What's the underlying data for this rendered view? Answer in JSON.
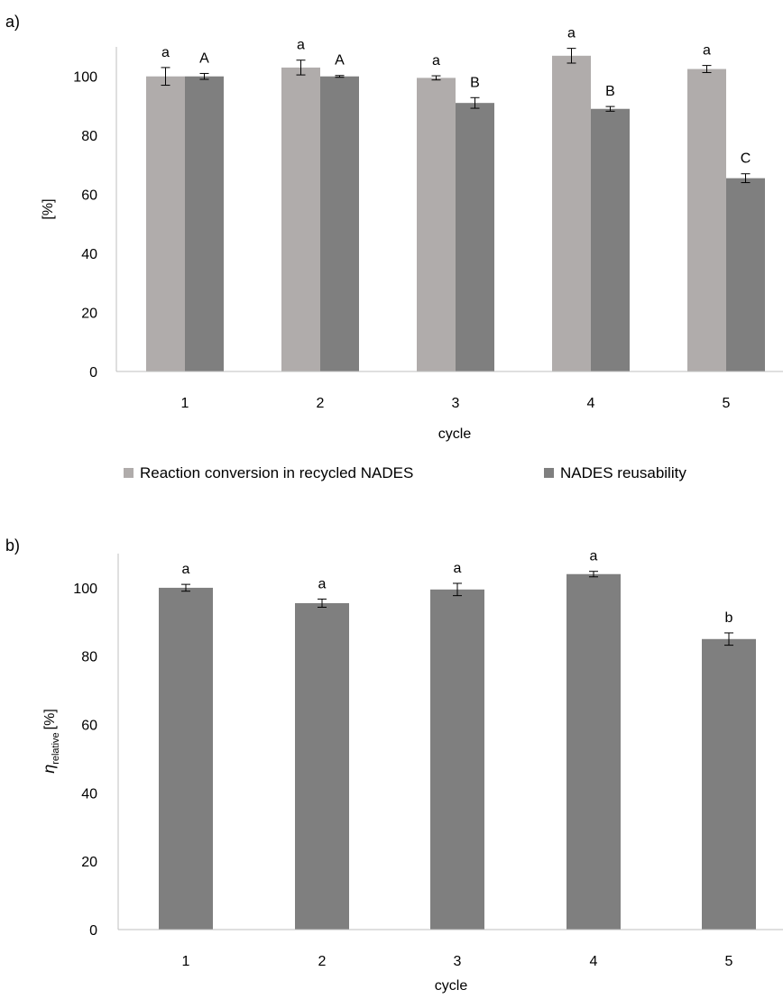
{
  "chart_data": [
    {
      "panel_label": "a)",
      "type": "bar",
      "categories": [
        "1",
        "2",
        "3",
        "4",
        "5"
      ],
      "xlabel": "cycle",
      "ylabel": "[%]",
      "ylim": [
        0,
        110
      ],
      "yticks": [
        0,
        20,
        40,
        60,
        80,
        100
      ],
      "grid": false,
      "legend_position": "bottom",
      "series": [
        {
          "name": "Reaction conversion in recycled NADES",
          "color": "#b0acab",
          "values": [
            100,
            103,
            99.5,
            107,
            102.5
          ],
          "errors": [
            3,
            2.5,
            0.7,
            2.5,
            1.2
          ],
          "letters": [
            "a",
            "a",
            "a",
            "a",
            "a"
          ]
        },
        {
          "name": "NADES reusability",
          "color": "#7f7f7f",
          "values": [
            100,
            100,
            91,
            89,
            65.5
          ],
          "errors": [
            1,
            0.3,
            1.8,
            0.8,
            1.5
          ],
          "letters": [
            "A",
            "A",
            "B",
            "B",
            "C"
          ]
        }
      ]
    },
    {
      "panel_label": "b)",
      "type": "bar",
      "categories": [
        "1",
        "2",
        "3",
        "4",
        "5"
      ],
      "xlabel": "cycle",
      "ylabel_symbol": "η",
      "ylabel_subscript": "relative",
      "ylabel_unit": "[%]",
      "ylim": [
        0,
        110
      ],
      "yticks": [
        0,
        20,
        40,
        60,
        80,
        100
      ],
      "grid": false,
      "series": [
        {
          "color": "#7f7f7f",
          "values": [
            100,
            95.5,
            99.5,
            104,
            85
          ],
          "errors": [
            1,
            1.2,
            1.8,
            0.8,
            1.8
          ],
          "letters": [
            "a",
            "a",
            "a",
            "a",
            "b"
          ]
        }
      ]
    }
  ]
}
